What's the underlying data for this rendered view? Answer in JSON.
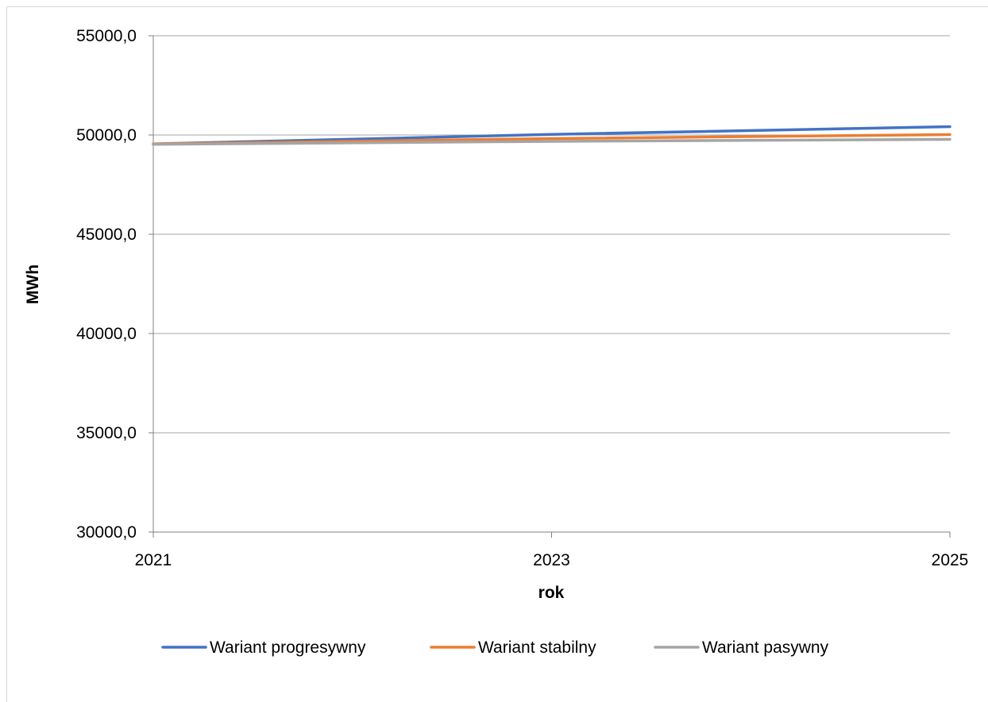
{
  "chart_data": {
    "type": "line",
    "title": "",
    "xlabel": "rok",
    "ylabel": "MWh",
    "x": [
      "2021",
      "2023",
      "2025"
    ],
    "y_ticks": [
      "30000,0",
      "35000,0",
      "40000,0",
      "45000,0",
      "50000,0",
      "55000,0"
    ],
    "ylim": [
      30000,
      55000
    ],
    "grid": "horizontal",
    "legend_position": "bottom",
    "series": [
      {
        "name": "Wariant progresywny",
        "color": "#4472C4",
        "values": [
          49550,
          50030,
          50420
        ]
      },
      {
        "name": "Wariant stabilny",
        "color": "#ED7D31",
        "values": [
          49550,
          49820,
          50020
        ]
      },
      {
        "name": "Wariant pasywny",
        "color": "#A5A5A5",
        "values": [
          49530,
          49680,
          49780
        ]
      }
    ]
  }
}
